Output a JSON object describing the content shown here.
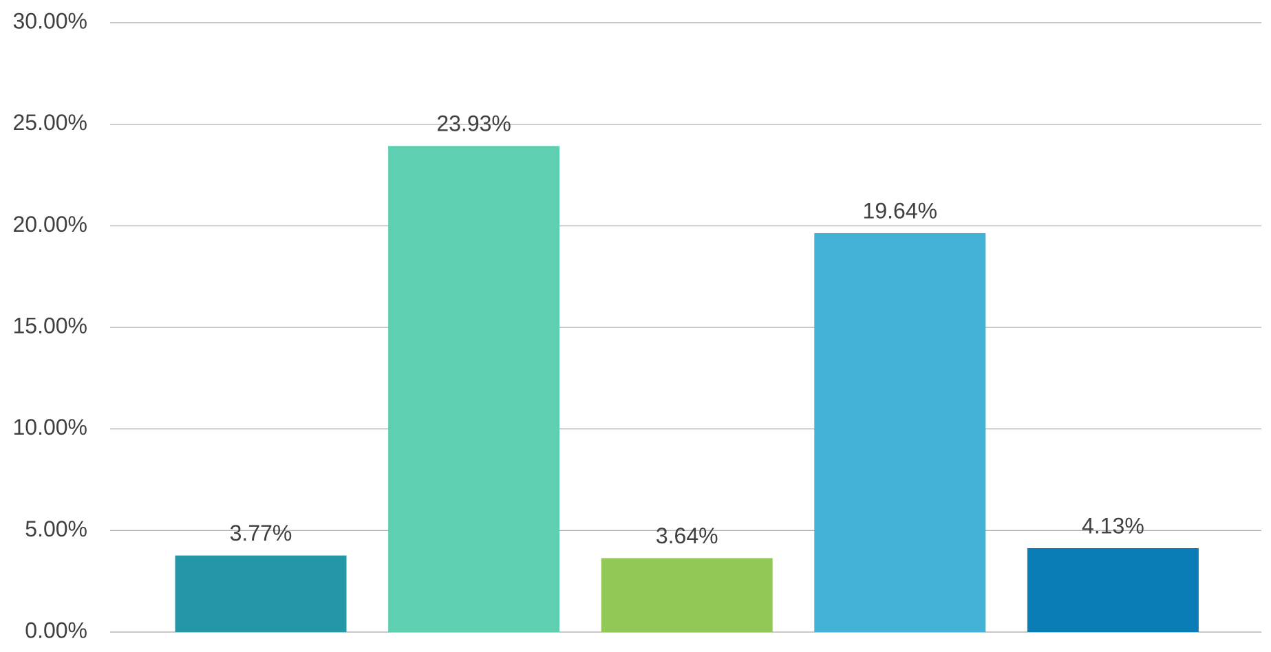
{
  "chart_data": {
    "type": "bar",
    "categories": [
      null,
      null,
      null,
      null,
      null
    ],
    "values": [
      3.77,
      23.93,
      3.64,
      19.64,
      4.13
    ],
    "value_labels": [
      "3.77%",
      "23.93%",
      "3.64%",
      "19.64%",
      "4.13%"
    ],
    "colors": [
      "#2596a6",
      "#5ecfb1",
      "#92c855",
      "#43b2d6",
      "#0b7db6"
    ],
    "ylim": [
      0,
      30
    ],
    "yticks": [
      {
        "value": 0,
        "label": "0.00%"
      },
      {
        "value": 5,
        "label": "5.00%"
      },
      {
        "value": 10,
        "label": "10.00%"
      },
      {
        "value": 15,
        "label": "15.00%"
      },
      {
        "value": 20,
        "label": "20.00%"
      },
      {
        "value": 25,
        "label": "25.00%"
      },
      {
        "value": 30,
        "label": "30.00%"
      }
    ],
    "grid": true
  }
}
